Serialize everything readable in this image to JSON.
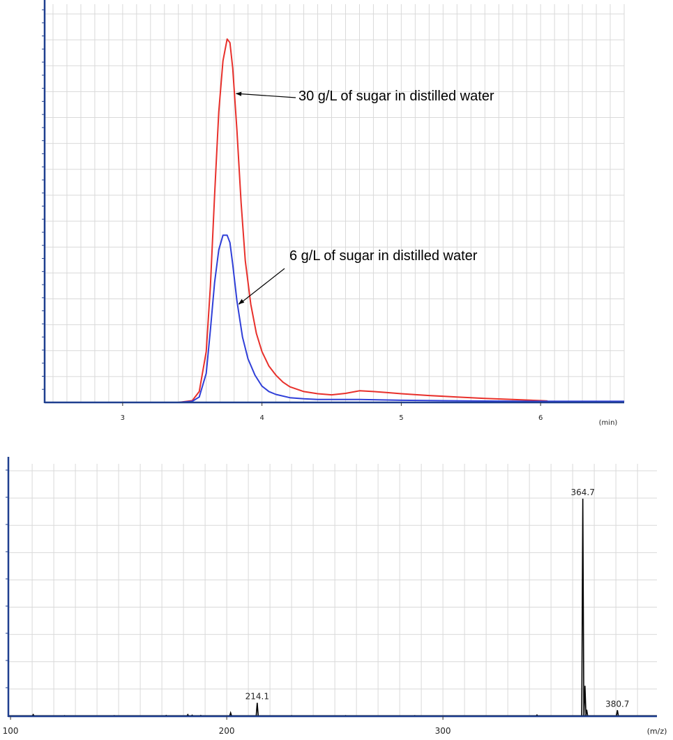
{
  "chart_data": [
    {
      "type": "line",
      "xlabel": "",
      "x_unit": "(min)",
      "ylabel": "",
      "xlim": [
        2.44,
        6.6
      ],
      "ylim": [
        0,
        100
      ],
      "x_ticks": [
        3,
        4,
        5,
        6
      ],
      "grid": true,
      "series": [
        {
          "key": "high",
          "color": "#e8302b",
          "x": [
            2.44,
            3.0,
            3.4,
            3.5,
            3.55,
            3.6,
            3.63,
            3.66,
            3.69,
            3.72,
            3.75,
            3.77,
            3.79,
            3.82,
            3.85,
            3.88,
            3.92,
            3.96,
            4.0,
            4.05,
            4.1,
            4.15,
            4.2,
            4.3,
            4.4,
            4.5,
            4.6,
            4.7,
            4.8,
            4.9,
            5.0,
            5.2,
            5.4,
            5.6,
            5.8,
            6.0,
            6.05
          ],
          "y": [
            0,
            0,
            0,
            0.5,
            3,
            14,
            32,
            57,
            80,
            94,
            100,
            99,
            92,
            75,
            55,
            39,
            27,
            19,
            14,
            10,
            7.5,
            5.6,
            4.3,
            3.0,
            2.4,
            2.1,
            2.5,
            3.2,
            3.0,
            2.7,
            2.4,
            1.9,
            1.5,
            1.1,
            0.8,
            0.5,
            0.4
          ]
        },
        {
          "key": "low",
          "color": "#2f3fd8",
          "x": [
            2.44,
            3.0,
            3.4,
            3.5,
            3.55,
            3.6,
            3.63,
            3.66,
            3.69,
            3.72,
            3.75,
            3.77,
            3.79,
            3.82,
            3.86,
            3.9,
            3.95,
            4.0,
            4.05,
            4.1,
            4.2,
            4.3,
            4.4,
            4.5,
            4.7,
            5.0,
            5.5,
            6.0,
            6.6
          ],
          "y": [
            0,
            0,
            0,
            0.3,
            1.5,
            8,
            20,
            33,
            42,
            46,
            46,
            44,
            38,
            28,
            18,
            12,
            7.5,
            4.5,
            3.0,
            2.2,
            1.3,
            1.0,
            0.8,
            0.8,
            0.8,
            0.6,
            0.4,
            0.3,
            0.3
          ]
        }
      ],
      "annotations": [
        {
          "key": "a30",
          "text": "30 g/L of sugar in distilled water",
          "target_x": 3.8,
          "target_y": 85
        },
        {
          "key": "a6",
          "text": "6 g/L of sugar in distilled water",
          "target_x": 3.82,
          "target_y": 27
        }
      ]
    },
    {
      "type": "bar",
      "xlabel": "",
      "x_unit": "(m/z)",
      "ylabel": "",
      "xlim": [
        99,
        399
      ],
      "ylim": [
        0,
        100
      ],
      "x_ticks": [
        100,
        200,
        300
      ],
      "grid": true,
      "peaks": [
        {
          "x": 110.5,
          "y": 0.8
        },
        {
          "x": 125,
          "y": 0.3
        },
        {
          "x": 148,
          "y": 0.3
        },
        {
          "x": 172,
          "y": 0.4
        },
        {
          "x": 182,
          "y": 0.8
        },
        {
          "x": 184,
          "y": 0.5
        },
        {
          "x": 188,
          "y": 0.4
        },
        {
          "x": 201.8,
          "y": 1.6
        },
        {
          "x": 214.1,
          "y": 6.2,
          "label": "214.1"
        },
        {
          "x": 230,
          "y": 0.3
        },
        {
          "x": 255,
          "y": 0.3
        },
        {
          "x": 287,
          "y": 0.3
        },
        {
          "x": 343.5,
          "y": 0.6
        },
        {
          "x": 364.7,
          "y": 100,
          "label": "364.7"
        },
        {
          "x": 365.7,
          "y": 14
        },
        {
          "x": 366.5,
          "y": 3
        },
        {
          "x": 380.7,
          "y": 2.8,
          "label": "380.7"
        }
      ]
    }
  ]
}
